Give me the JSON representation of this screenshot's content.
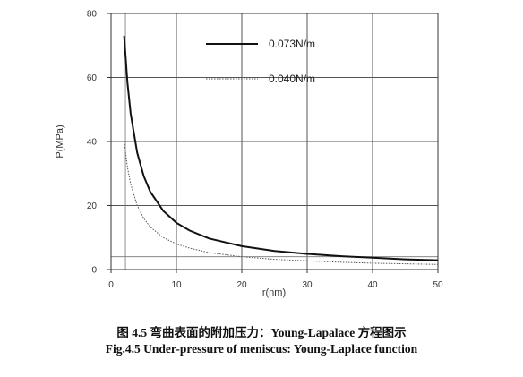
{
  "chart_data": {
    "type": "line",
    "xlabel": "r(nm)",
    "ylabel": "P(MPa)",
    "xlim": [
      0,
      50
    ],
    "ylim": [
      0,
      80
    ],
    "xticks": [
      0,
      10,
      20,
      30,
      40,
      50
    ],
    "yticks": [
      0,
      20,
      40,
      60,
      80
    ],
    "grid": true,
    "legend_position": "top-right",
    "series": [
      {
        "name": "0.073N/m",
        "style": "solid",
        "color": "#111111",
        "x": [
          2,
          2.5,
          3,
          4,
          5,
          6,
          8,
          10,
          12,
          15,
          20,
          25,
          30,
          35,
          40,
          45,
          50
        ],
        "y": [
          73,
          58.4,
          48.7,
          36.5,
          29.2,
          24.3,
          18.3,
          14.6,
          12.2,
          9.7,
          7.3,
          5.8,
          4.9,
          4.2,
          3.7,
          3.2,
          2.9
        ]
      },
      {
        "name": "0.040N/m",
        "style": "dotted",
        "color": "#555555",
        "x": [
          2,
          2.5,
          3,
          4,
          5,
          6,
          8,
          10,
          12,
          15,
          20,
          25,
          30,
          35,
          40,
          45,
          50
        ],
        "y": [
          40,
          32,
          26.7,
          20,
          16,
          13.3,
          10,
          8,
          6.7,
          5.3,
          4,
          3.2,
          2.7,
          2.3,
          2,
          1.8,
          1.6
        ]
      }
    ]
  },
  "caption": {
    "cn": "图 4.5 弯曲表面的附加压力：Young-Lapalace 方程图示",
    "en": "Fig.4.5 Under-pressure of meniscus: Young-Laplace function"
  }
}
